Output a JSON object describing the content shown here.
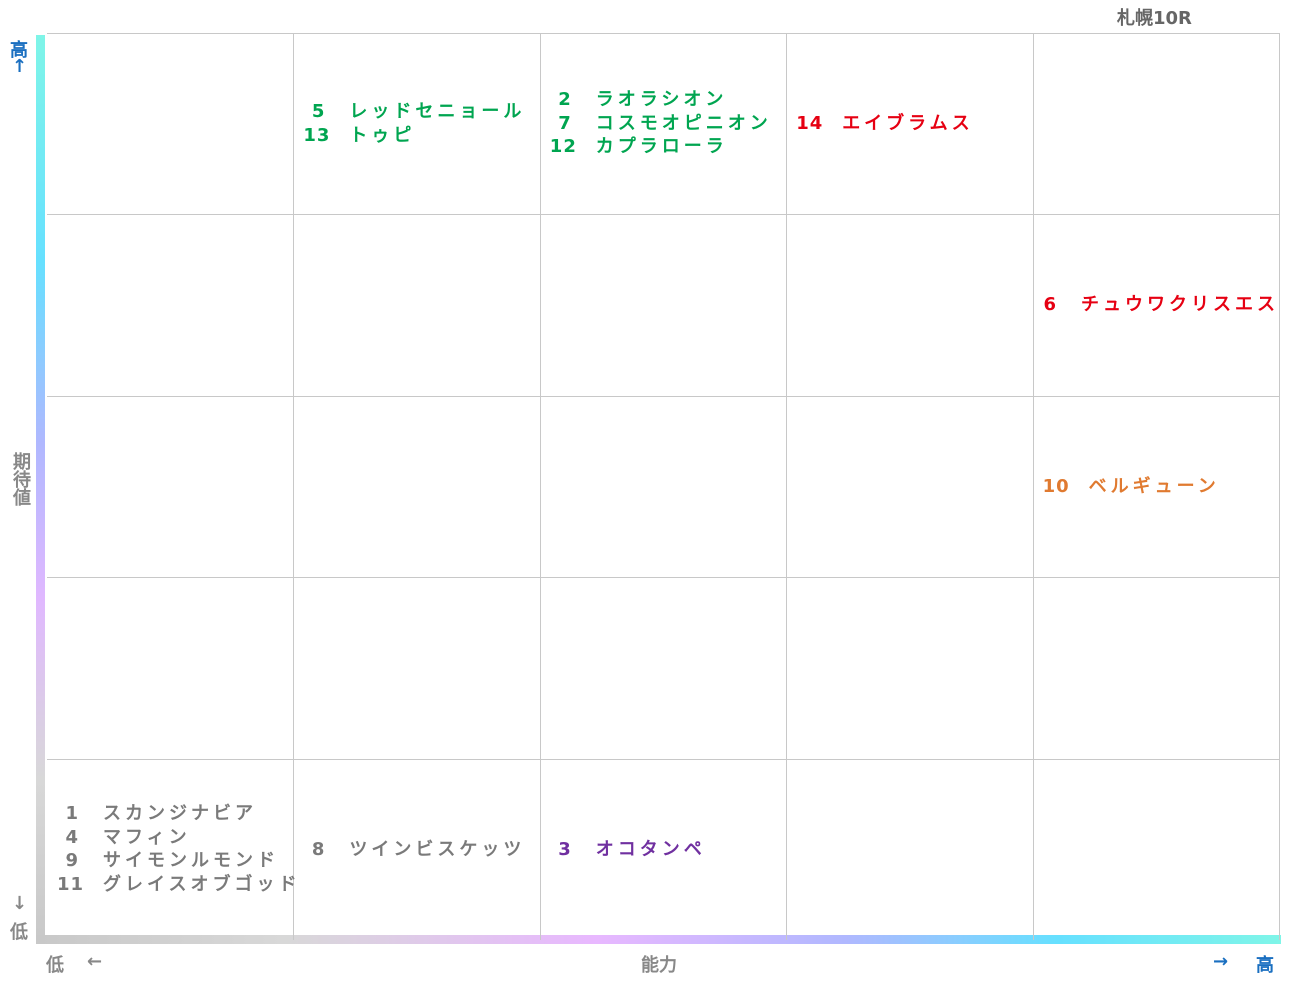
{
  "title": "札幌10R",
  "y_axis": {
    "high": "高",
    "high_arrow": "↑",
    "label": "期待値",
    "low_arrow": "↓",
    "low": "低"
  },
  "x_axis": {
    "low": "低",
    "low_arrow": "←",
    "label": "能力",
    "high_arrow": "→",
    "high": "高"
  },
  "grid": {
    "rows": [
      [
        null,
        {
          "color": "#00a550",
          "horses": [
            {
              "number": 5,
              "name": "レッドセニョール"
            },
            {
              "number": 13,
              "name": "トゥピ"
            }
          ]
        },
        {
          "color": "#00a550",
          "horses": [
            {
              "number": 2,
              "name": "ラオラシオン"
            },
            {
              "number": 7,
              "name": "コスモオピニオン"
            },
            {
              "number": 12,
              "name": "カプラローラ"
            }
          ]
        },
        {
          "color": "#e60012",
          "horses": [
            {
              "number": 14,
              "name": "エイブラムス"
            }
          ]
        },
        null
      ],
      [
        null,
        null,
        null,
        null,
        {
          "color": "#e60012",
          "horses": [
            {
              "number": 6,
              "name": "チュウワクリスエス"
            }
          ]
        }
      ],
      [
        null,
        null,
        null,
        null,
        {
          "color": "#e07a30",
          "horses": [
            {
              "number": 10,
              "name": "ベルギューン"
            }
          ]
        }
      ],
      [
        null,
        null,
        null,
        null,
        null
      ],
      [
        {
          "color": "#7a7a7a",
          "horses": [
            {
              "number": 1,
              "name": "スカンジナビア"
            },
            {
              "number": 4,
              "name": "マフィン"
            },
            {
              "number": 9,
              "name": "サイモンルモンド"
            },
            {
              "number": 11,
              "name": "グレイスオブゴッド"
            }
          ]
        },
        {
          "color": "#7a7a7a",
          "horses": [
            {
              "number": 8,
              "name": "ツインビスケッツ"
            }
          ]
        },
        {
          "color": "#7030a0",
          "horses": [
            {
              "number": 3,
              "name": "オコタンペ"
            }
          ]
        },
        null,
        null
      ]
    ]
  }
}
